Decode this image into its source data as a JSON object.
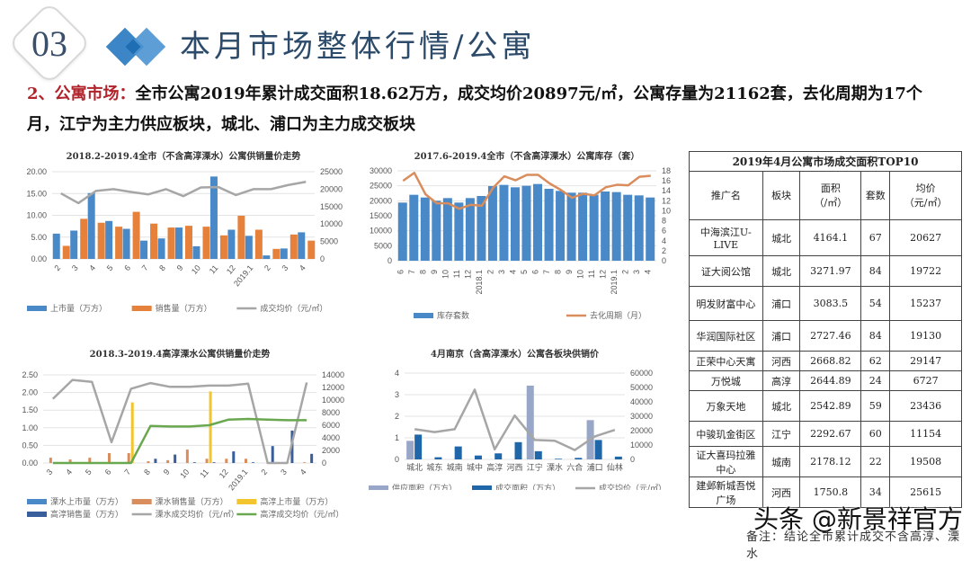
{
  "header": {
    "section_number": "03",
    "title": "本月市场整体行情/公寓"
  },
  "summary": {
    "lead": "2、公寓市场：",
    "text": "全市公寓2019年累计成交面积18.62万方，成交均价20897元/㎡，公寓存量为21162套，去化周期为17个月，江宁为主力供应板块，城北、浦口为主力成交板块"
  },
  "colors": {
    "blue": "#4a89c8",
    "orange": "#e5813a",
    "gray": "#a6a6a6",
    "yellow": "#f2c42e",
    "dark_blue": "#3a5e9c",
    "green": "#6aa84f",
    "light_slate": "#98a6c8",
    "deep_blue": "#1f67a8",
    "tan": "#d98d5c"
  },
  "chart_data": [
    {
      "id": "chart1",
      "type": "bar+line",
      "title": "2018.2-2019.4全市（不含高淳溧水）公寓供销量价走势",
      "categories": [
        "2",
        "3",
        "4",
        "5",
        "6",
        "7",
        "8",
        "9",
        "10",
        "11",
        "12",
        "2019.1",
        "2",
        "3",
        "4"
      ],
      "series": [
        {
          "name": "上市量（万方）",
          "type": "bar",
          "axis": "left",
          "values": [
            5.8,
            6.5,
            15.1,
            8.7,
            6.9,
            4.2,
            4.7,
            7.2,
            2.9,
            18.9,
            6.7,
            5.3,
            0.8,
            2.4,
            6.1
          ]
        },
        {
          "name": "销售量（万方）",
          "type": "bar",
          "axis": "left",
          "values": [
            3.0,
            9.2,
            8.3,
            7.4,
            10.8,
            8.1,
            7.2,
            7.6,
            7.4,
            5.4,
            9.9,
            6.7,
            2.3,
            5.6,
            4.2
          ]
        },
        {
          "name": "成交均价（元/㎡）",
          "type": "line",
          "axis": "right",
          "values": [
            18800,
            16000,
            19500,
            20000,
            19200,
            18500,
            20000,
            18000,
            20500,
            20600,
            18300,
            20000,
            20000,
            21200,
            22100
          ]
        }
      ],
      "ylim_left": [
        0,
        20
      ],
      "yticks_left": [
        "0.00",
        "5.00",
        "10.00",
        "15.00",
        "20.00"
      ],
      "ylim_right": [
        0,
        25000
      ],
      "yticks_right": [
        "0",
        "5000",
        "10000",
        "15000",
        "20000",
        "25000"
      ]
    },
    {
      "id": "chart2",
      "type": "bar+line",
      "title": "2017.6-2019.4全市（不含高淳溧水）公寓库存（套）",
      "categories": [
        "6",
        "7",
        "8",
        "9",
        "10",
        "11",
        "12",
        "2018.1",
        "2",
        "3",
        "4",
        "5",
        "6",
        "7",
        "8",
        "9",
        "10",
        "11",
        "12",
        "2019.1",
        "2",
        "3",
        "4"
      ],
      "series": [
        {
          "name": "库存套数",
          "type": "bar",
          "axis": "left",
          "values": [
            19400,
            22000,
            21100,
            20000,
            20900,
            19400,
            20900,
            21600,
            24900,
            25300,
            24500,
            25000,
            25600,
            24000,
            23300,
            22700,
            22700,
            22000,
            23100,
            22900,
            22000,
            21800,
            21100
          ]
        },
        {
          "name": "去化周期（月）",
          "type": "line",
          "axis": "right",
          "values": [
            16,
            17.6,
            13.3,
            11.5,
            11.5,
            10.4,
            11.2,
            11.0,
            14.6,
            16.9,
            16.1,
            17.2,
            17.2,
            15.5,
            14.2,
            12.6,
            13.4,
            13.1,
            14.7,
            15.2,
            15.1,
            16.8,
            17.0
          ]
        }
      ],
      "ylim_left": [
        0,
        30000
      ],
      "yticks_left": [
        "0",
        "5000",
        "10000",
        "15000",
        "20000",
        "25000",
        "30000"
      ],
      "ylim_right": [
        0,
        18
      ],
      "yticks_right": [
        "0",
        "2",
        "4",
        "6",
        "8",
        "10",
        "12",
        "14",
        "16",
        "18"
      ]
    },
    {
      "id": "chart3",
      "type": "bar+line",
      "title": "2018.3-2019.4高淳溧水公寓供销量价走势",
      "categories": [
        "3",
        "4",
        "5",
        "6",
        "7",
        "8",
        "9",
        "10",
        "11",
        "12",
        "2019.1",
        "2",
        "3",
        "4"
      ],
      "series": [
        {
          "name": "溧水上市量（万方）",
          "type": "bar",
          "axis": "left",
          "values": [
            0,
            0,
            0,
            0,
            0,
            0,
            0,
            0,
            0,
            0,
            0,
            0,
            0,
            0
          ]
        },
        {
          "name": "溧水销售量（万方）",
          "type": "bar",
          "axis": "left",
          "values": [
            0.15,
            0.1,
            0.15,
            0.28,
            0.28,
            0.05,
            0.08,
            0.38,
            0.12,
            0.12,
            0.12,
            0,
            0,
            0.02
          ]
        },
        {
          "name": "高淳上市量（万方）",
          "type": "bar",
          "axis": "left",
          "values": [
            0,
            0,
            0,
            0,
            1.72,
            0,
            0,
            0,
            2.03,
            0,
            0,
            0,
            0,
            0
          ]
        },
        {
          "name": "高淳销售量（万方）",
          "type": "bar",
          "axis": "left",
          "values": [
            0,
            0,
            0,
            0,
            0,
            0.12,
            0.24,
            0.02,
            0.02,
            0.33,
            0.02,
            0.48,
            0.92,
            0.26
          ]
        },
        {
          "name": "溧水成交均价（元/㎡）",
          "type": "line",
          "axis": "right",
          "values": [
            10200,
            13200,
            12900,
            3300,
            11800,
            12700,
            12100,
            12100,
            12300,
            12300,
            12600,
            0,
            0,
            12800
          ]
        },
        {
          "name": "高淳成交均价（元/㎡）",
          "type": "line",
          "axis": "right",
          "values": [
            0,
            0,
            0,
            0,
            0,
            5900,
            5800,
            5800,
            6000,
            6900,
            7000,
            6900,
            6800,
            6800
          ]
        }
      ],
      "ylim_left": [
        0,
        2.5
      ],
      "yticks_left": [
        "0.00",
        "0.50",
        "1.00",
        "1.50",
        "2.00",
        "2.50"
      ],
      "ylim_right": [
        0,
        14000
      ],
      "yticks_right": [
        "0",
        "2000",
        "4000",
        "6000",
        "8000",
        "10000",
        "12000",
        "14000"
      ]
    },
    {
      "id": "chart4",
      "type": "bar+line",
      "title": "4月南京（含高淳溧水）公寓各板块供销价",
      "categories": [
        "城北",
        "城东",
        "城南",
        "城中",
        "高淳",
        "河西",
        "江宁",
        "溧水",
        "六合",
        "浦口",
        "仙林"
      ],
      "series": [
        {
          "name": "供应面积（万方）",
          "type": "bar",
          "axis": "left",
          "values": [
            0.86,
            0,
            0,
            0,
            0,
            0,
            3.42,
            0,
            0,
            1.82,
            0
          ]
        },
        {
          "name": "成交面积（万方）",
          "type": "bar",
          "axis": "left",
          "values": [
            1.15,
            0.1,
            0.6,
            0.18,
            0.28,
            0.8,
            0.38,
            0.03,
            0.07,
            0.9,
            0.13
          ]
        },
        {
          "name": "成交均价（元/㎡）",
          "type": "line",
          "axis": "right",
          "values": [
            21000,
            19000,
            21000,
            48500,
            7000,
            30500,
            13500,
            13000,
            6500,
            16000,
            20500
          ]
        }
      ],
      "ylim_left": [
        0,
        4
      ],
      "yticks_left": [
        "0",
        "1",
        "2",
        "3",
        "4"
      ],
      "ylim_right": [
        0,
        60000
      ],
      "yticks_right": [
        "0",
        "10000",
        "20000",
        "30000",
        "40000",
        "50000",
        "60000"
      ]
    }
  ],
  "table": {
    "title": "2019年4月公寓市场成交面积TOP10",
    "headers": [
      "推广名",
      "板块",
      "面积\n（/㎡）",
      "套数",
      "均价\n（元/㎡）"
    ],
    "rows": [
      [
        "中海滨江U-LIVE",
        "城北",
        "4164.1",
        "67",
        "20627"
      ],
      [
        "证大阅公馆",
        "城北",
        "3271.97",
        "84",
        "19722"
      ],
      [
        "明发财富中心",
        "浦口",
        "3083.5",
        "54",
        "15237"
      ],
      [
        "华润国际社区",
        "浦口",
        "2727.46",
        "84",
        "19130"
      ],
      [
        "正荣中心天寓",
        "河西",
        "2668.82",
        "62",
        "29147"
      ],
      [
        "万悦城",
        "高淳",
        "2644.89",
        "24",
        "6727"
      ],
      [
        "万象天地",
        "城北",
        "2542.89",
        "59",
        "23436"
      ],
      [
        "中骏玑金街区",
        "江宁",
        "2292.67",
        "60",
        "11154"
      ],
      [
        "证大喜玛拉雅中心",
        "城南",
        "2178.12",
        "22",
        "19508"
      ],
      [
        "建邺新城吾悦广场",
        "河西",
        "1750.8",
        "34",
        "25615"
      ]
    ]
  },
  "footer": {
    "watermark": "头条 @新景祥官方",
    "note": "备注：结论全市累计成交不含高淳、溧水"
  }
}
